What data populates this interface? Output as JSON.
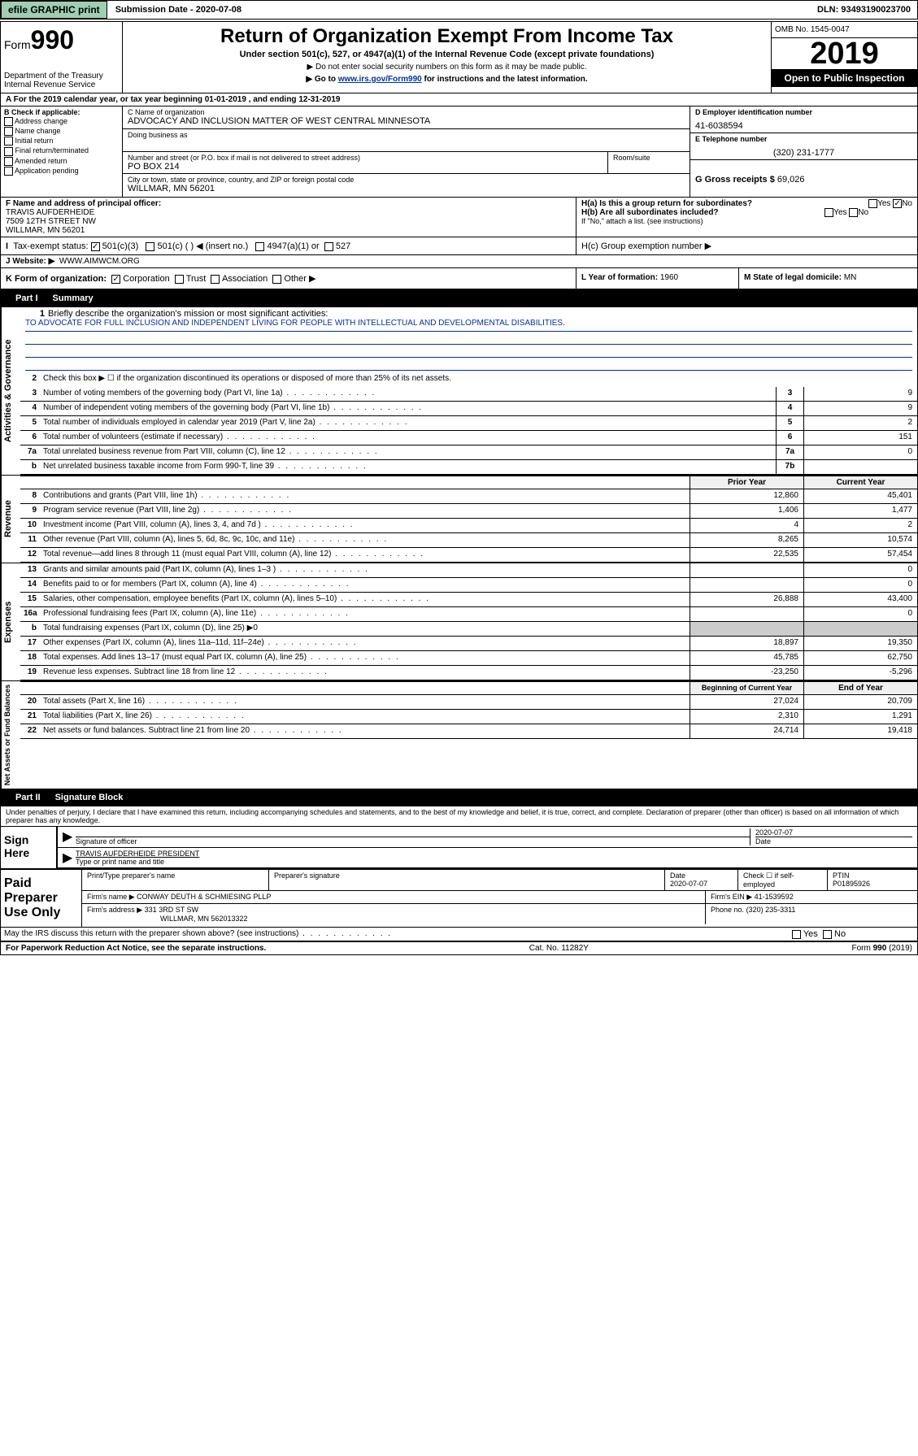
{
  "topbar": {
    "efile": "efile GRAPHIC print",
    "sub_label": "Submission Date",
    "sub_date": "2020-07-08",
    "dln_label": "DLN:",
    "dln": "93493190023700"
  },
  "header": {
    "form_word": "Form",
    "form_num": "990",
    "dept": "Department of the Treasury",
    "irs": "Internal Revenue Service",
    "title": "Return of Organization Exempt From Income Tax",
    "subtitle": "Under section 501(c), 527, or 4947(a)(1) of the Internal Revenue Code (except private foundations)",
    "note1": "▶ Do not enter social security numbers on this form as it may be made public.",
    "note2_pre": "▶ Go to ",
    "note2_link": "www.irs.gov/Form990",
    "note2_post": " for instructions and the latest information.",
    "omb": "OMB No. 1545-0047",
    "year": "2019",
    "open": "Open to Public Inspection"
  },
  "row_a": "A For the 2019 calendar year, or tax year beginning 01-01-2019    , and ending 12-31-2019",
  "col_b": {
    "hdr": "B Check if applicable:",
    "opts": [
      "Address change",
      "Name change",
      "Initial return",
      "Final return/terminated",
      "Amended return",
      "Application pending"
    ]
  },
  "col_c": {
    "name_label": "C Name of organization",
    "name": "ADVOCACY AND INCLUSION MATTER OF WEST CENTRAL MINNESOTA",
    "dba_label": "Doing business as",
    "dba": "",
    "addr_label": "Number and street (or P.O. box if mail is not delivered to street address)",
    "addr": "PO BOX 214",
    "room_label": "Room/suite",
    "city_label": "City or town, state or province, country, and ZIP or foreign postal code",
    "city": "WILLMAR, MN  56201"
  },
  "col_d": {
    "ein_label": "D Employer identification number",
    "ein": "41-6038594",
    "tel_label": "E Telephone number",
    "tel": "(320) 231-1777",
    "gross_label": "G Gross receipts $",
    "gross": "69,026"
  },
  "row_f": {
    "label": "F  Name and address of principal officer:",
    "name": "TRAVIS AUFDERHEIDE",
    "addr1": "7509 12TH STREET NW",
    "addr2": "WILLMAR, MN  56201"
  },
  "row_h": {
    "ha": "H(a)  Is this a group return for subordinates?",
    "hb": "H(b)  Are all subordinates included?",
    "hb_note": "If \"No,\" attach a list. (see instructions)",
    "hc": "H(c)  Group exemption number ▶",
    "yes": "Yes",
    "no": "No"
  },
  "row_i": {
    "label": "Tax-exempt status:",
    "o1": "501(c)(3)",
    "o2": "501(c) (  ) ◀ (insert no.)",
    "o3": "4947(a)(1) or",
    "o4": "527"
  },
  "row_j": {
    "label": "J   Website: ▶",
    "val": "WWW.AIMWCM.ORG"
  },
  "row_k": {
    "label": "K Form of organization:",
    "o1": "Corporation",
    "o2": "Trust",
    "o3": "Association",
    "o4": "Other ▶",
    "l_label": "L Year of formation:",
    "l_val": "1960",
    "m_label": "M State of legal domicile:",
    "m_val": "MN"
  },
  "part1": {
    "num": "Part I",
    "title": "Summary",
    "q1": "Briefly describe the organization's mission or most significant activities:",
    "mission": "TO ADVOCATE FOR FULL INCLUSION AND INDEPENDENT LIVING FOR PEOPLE WITH INTELLECTUAL AND DEVELOPMENTAL DISABILITIES.",
    "q2": "Check this box ▶ ☐  if the organization discontinued its operations or disposed of more than 25% of its net assets.",
    "lines": [
      {
        "n": "3",
        "d": "Number of voting members of the governing body (Part VI, line 1a)",
        "b": "3",
        "v": "9"
      },
      {
        "n": "4",
        "d": "Number of independent voting members of the governing body (Part VI, line 1b)",
        "b": "4",
        "v": "9"
      },
      {
        "n": "5",
        "d": "Total number of individuals employed in calendar year 2019 (Part V, line 2a)",
        "b": "5",
        "v": "2"
      },
      {
        "n": "6",
        "d": "Total number of volunteers (estimate if necessary)",
        "b": "6",
        "v": "151"
      },
      {
        "n": "7a",
        "d": "Total unrelated business revenue from Part VIII, column (C), line 12",
        "b": "7a",
        "v": "0"
      },
      {
        "n": "b",
        "d": "Net unrelated business taxable income from Form 990-T, line 39",
        "b": "7b",
        "v": ""
      }
    ],
    "hdr_prior": "Prior Year",
    "hdr_curr": "Current Year",
    "revenue": [
      {
        "n": "8",
        "d": "Contributions and grants (Part VIII, line 1h)",
        "p": "12,860",
        "c": "45,401"
      },
      {
        "n": "9",
        "d": "Program service revenue (Part VIII, line 2g)",
        "p": "1,406",
        "c": "1,477"
      },
      {
        "n": "10",
        "d": "Investment income (Part VIII, column (A), lines 3, 4, and 7d )",
        "p": "4",
        "c": "2"
      },
      {
        "n": "11",
        "d": "Other revenue (Part VIII, column (A), lines 5, 6d, 8c, 9c, 10c, and 11e)",
        "p": "8,265",
        "c": "10,574"
      },
      {
        "n": "12",
        "d": "Total revenue—add lines 8 through 11 (must equal Part VIII, column (A), line 12)",
        "p": "22,535",
        "c": "57,454"
      }
    ],
    "expenses": [
      {
        "n": "13",
        "d": "Grants and similar amounts paid (Part IX, column (A), lines 1–3 )",
        "p": "",
        "c": "0"
      },
      {
        "n": "14",
        "d": "Benefits paid to or for members (Part IX, column (A), line 4)",
        "p": "",
        "c": "0"
      },
      {
        "n": "15",
        "d": "Salaries, other compensation, employee benefits (Part IX, column (A), lines 5–10)",
        "p": "26,888",
        "c": "43,400"
      },
      {
        "n": "16a",
        "d": "Professional fundraising fees (Part IX, column (A), line 11e)",
        "p": "",
        "c": "0"
      },
      {
        "n": "b",
        "d": "Total fundraising expenses (Part IX, column (D), line 25) ▶0",
        "p": "",
        "c": "",
        "noval": true
      },
      {
        "n": "17",
        "d": "Other expenses (Part IX, column (A), lines 11a–11d, 11f–24e)",
        "p": "18,897",
        "c": "19,350"
      },
      {
        "n": "18",
        "d": "Total expenses. Add lines 13–17 (must equal Part IX, column (A), line 25)",
        "p": "45,785",
        "c": "62,750"
      },
      {
        "n": "19",
        "d": "Revenue less expenses. Subtract line 18 from line 12",
        "p": "-23,250",
        "c": "-5,296"
      }
    ],
    "hdr_beg": "Beginning of Current Year",
    "hdr_end": "End of Year",
    "netassets": [
      {
        "n": "20",
        "d": "Total assets (Part X, line 16)",
        "p": "27,024",
        "c": "20,709"
      },
      {
        "n": "21",
        "d": "Total liabilities (Part X, line 26)",
        "p": "2,310",
        "c": "1,291"
      },
      {
        "n": "22",
        "d": "Net assets or fund balances. Subtract line 21 from line 20",
        "p": "24,714",
        "c": "19,418"
      }
    ],
    "side_gov": "Activities & Governance",
    "side_rev": "Revenue",
    "side_exp": "Expenses",
    "side_net": "Net Assets or Fund Balances"
  },
  "part2": {
    "num": "Part II",
    "title": "Signature Block",
    "decl": "Under penalties of perjury, I declare that I have examined this return, including accompanying schedules and statements, and to the best of my knowledge and belief, it is true, correct, and complete. Declaration of preparer (other than officer) is based on all information of which preparer has any knowledge.",
    "sign_here": "Sign Here",
    "sig_label": "Signature of officer",
    "sig_date": "2020-07-07",
    "date_label": "Date",
    "name_label": "Type or print name and title",
    "name": "TRAVIS AUFDERHEIDE  PRESIDENT",
    "paid": "Paid Preparer Use Only",
    "prep_name_label": "Print/Type preparer's name",
    "prep_sig_label": "Preparer's signature",
    "prep_date_label": "Date",
    "prep_date": "2020-07-07",
    "check_se": "Check ☐ if self-employed",
    "ptin_label": "PTIN",
    "ptin": "P01895926",
    "firm_name_label": "Firm's name    ▶",
    "firm_name": "CONWAY DEUTH & SCHMIESING PLLP",
    "firm_ein_label": "Firm's EIN ▶",
    "firm_ein": "41-1539592",
    "firm_addr_label": "Firm's address ▶",
    "firm_addr1": "331 3RD ST SW",
    "firm_addr2": "WILLMAR, MN  562013322",
    "phone_label": "Phone no.",
    "phone": "(320) 235-3311",
    "discuss": "May the IRS discuss this return with the preparer shown above? (see instructions)",
    "yes": "Yes",
    "no": "No"
  },
  "footer": {
    "pra": "For Paperwork Reduction Act Notice, see the separate instructions.",
    "cat": "Cat. No. 11282Y",
    "form": "Form 990 (2019)"
  }
}
